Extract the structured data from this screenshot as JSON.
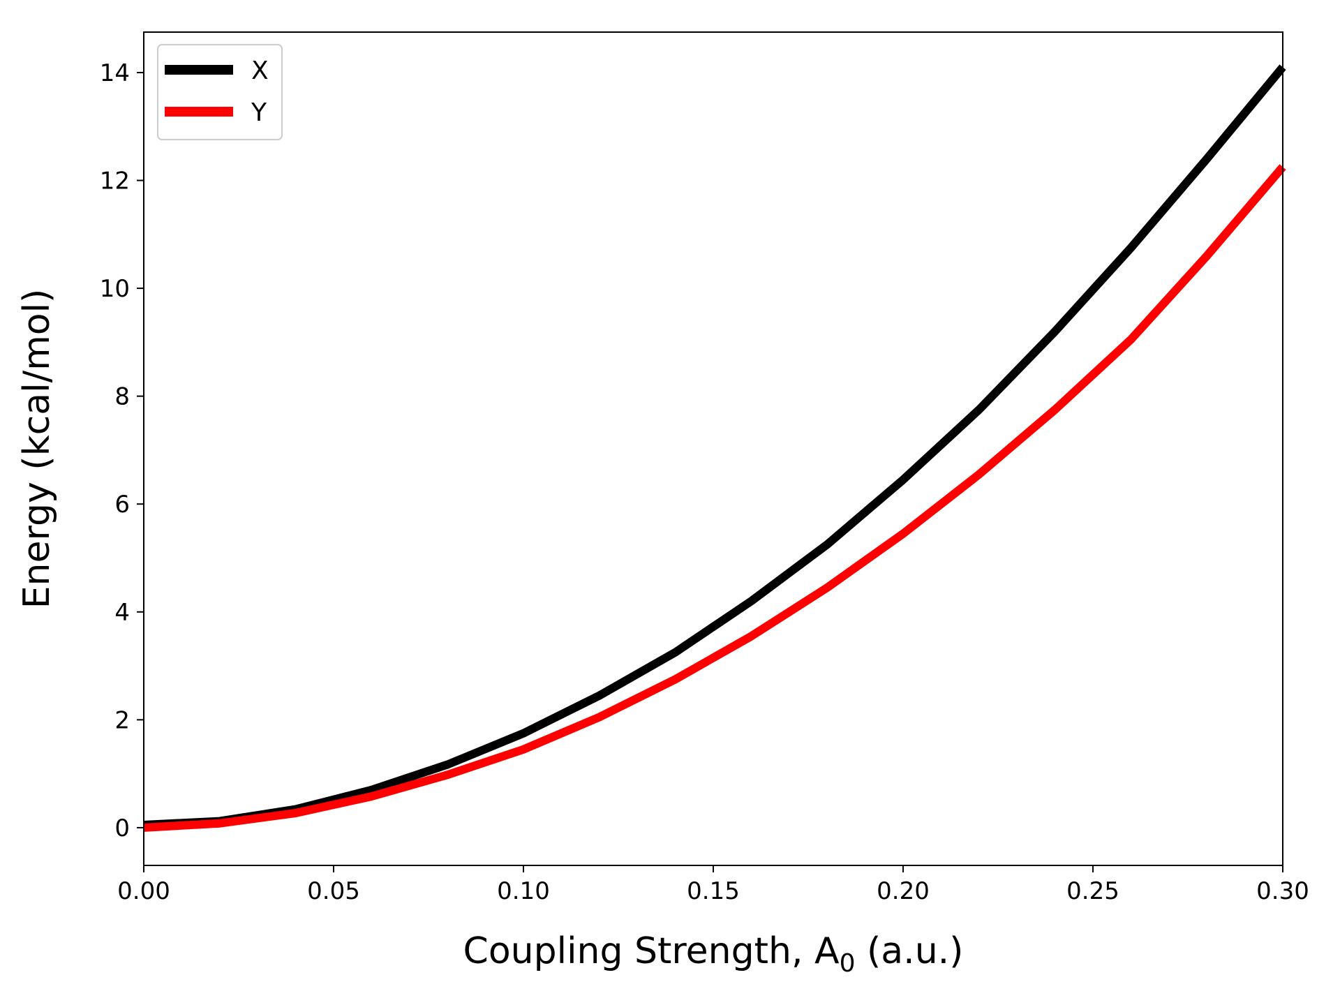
{
  "chart_data": {
    "type": "line",
    "title": "",
    "xlabel": "Coupling Strength, A",
    "xlabel_subscript": "0",
    "xlabel_suffix": " (a.u.)",
    "ylabel": "Energy (kcal/mol)",
    "xlim": [
      0.0,
      0.3
    ],
    "ylim": [
      -0.7,
      14.75
    ],
    "xticks": [
      0.0,
      0.05,
      0.1,
      0.15,
      0.2,
      0.25,
      0.3
    ],
    "xtick_labels": [
      "0.00",
      "0.05",
      "0.10",
      "0.15",
      "0.20",
      "0.25",
      "0.30"
    ],
    "yticks": [
      0,
      2,
      4,
      6,
      8,
      10,
      12,
      14
    ],
    "ytick_labels": [
      "0",
      "2",
      "4",
      "6",
      "8",
      "10",
      "12",
      "14"
    ],
    "grid": false,
    "legend_position": "top-left",
    "x": [
      0.0,
      0.02,
      0.04,
      0.06,
      0.08,
      0.1,
      0.12,
      0.14,
      0.16,
      0.18,
      0.2,
      0.22,
      0.24,
      0.26,
      0.28,
      0.3
    ],
    "series": [
      {
        "name": "X",
        "color": "#000000",
        "values": [
          0.05,
          0.12,
          0.34,
          0.7,
          1.17,
          1.75,
          2.45,
          3.25,
          4.2,
          5.25,
          6.45,
          7.75,
          9.2,
          10.75,
          12.4,
          14.1
        ]
      },
      {
        "name": "Y",
        "color": "#ff0000",
        "values": [
          0.0,
          0.08,
          0.27,
          0.58,
          0.98,
          1.45,
          2.05,
          2.75,
          3.55,
          4.45,
          5.45,
          6.55,
          7.75,
          9.05,
          10.6,
          12.25
        ]
      }
    ]
  }
}
